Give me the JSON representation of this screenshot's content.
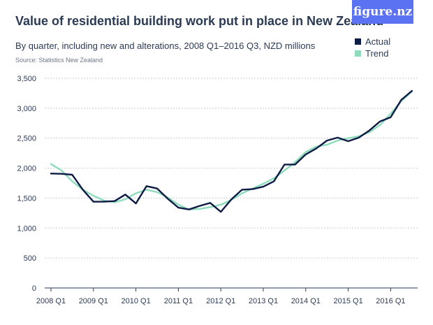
{
  "header": {
    "title": "Value of residential building work put in place in New Zealand",
    "subtitle": "By quarter, including new and alterations, 2008 Q1–2016 Q3, NZD millions",
    "source": "Source: Statistics New Zealand",
    "logo": "figure.nz"
  },
  "colors": {
    "actual": "#0d1b45",
    "trend": "#8fdcbc",
    "text": "#2b3a55",
    "grid": "#c8ccd4",
    "logo_bg": "#5b72f2"
  },
  "chart_data": {
    "type": "line",
    "title": "Value of residential building work put in place in New Zealand",
    "subtitle": "By quarter, including new and alterations, 2008 Q1–2016 Q3, NZD millions",
    "xlabel": "",
    "ylabel": "",
    "ylim": [
      0,
      3500
    ],
    "y_ticks": [
      "0",
      "500",
      "1,000",
      "1,500",
      "2,000",
      "2,500",
      "3,000",
      "3,500"
    ],
    "x_ticks": [
      "2008 Q1",
      "2009 Q1",
      "2010 Q1",
      "2011 Q1",
      "2012 Q1",
      "2013 Q1",
      "2014 Q1",
      "2015 Q1",
      "2016 Q1"
    ],
    "x": [
      "2008 Q1",
      "2008 Q2",
      "2008 Q3",
      "2008 Q4",
      "2009 Q1",
      "2009 Q2",
      "2009 Q3",
      "2009 Q4",
      "2010 Q1",
      "2010 Q2",
      "2010 Q3",
      "2010 Q4",
      "2011 Q1",
      "2011 Q2",
      "2011 Q3",
      "2011 Q4",
      "2012 Q1",
      "2012 Q2",
      "2012 Q3",
      "2012 Q4",
      "2013 Q1",
      "2013 Q2",
      "2013 Q3",
      "2013 Q4",
      "2014 Q1",
      "2014 Q2",
      "2014 Q3",
      "2014 Q4",
      "2015 Q1",
      "2015 Q2",
      "2015 Q3",
      "2015 Q4",
      "2016 Q1",
      "2016 Q2",
      "2016 Q3"
    ],
    "series": [
      {
        "name": "Actual",
        "values": [
          1910,
          1905,
          1890,
          1640,
          1440,
          1440,
          1450,
          1560,
          1410,
          1700,
          1660,
          1490,
          1340,
          1310,
          1370,
          1420,
          1270,
          1480,
          1640,
          1650,
          1690,
          1780,
          2060,
          2060,
          2230,
          2330,
          2460,
          2510,
          2450,
          2510,
          2630,
          2780,
          2850,
          3140,
          3290
        ]
      },
      {
        "name": "Trend",
        "values": [
          2070,
          1960,
          1780,
          1640,
          1540,
          1460,
          1430,
          1480,
          1580,
          1640,
          1600,
          1510,
          1390,
          1310,
          1320,
          1350,
          1390,
          1470,
          1580,
          1660,
          1740,
          1830,
          1960,
          2100,
          2270,
          2360,
          2390,
          2460,
          2500,
          2530,
          2600,
          2720,
          2910,
          3120,
          3280
        ]
      }
    ],
    "legend": "top-right",
    "grid": true
  }
}
